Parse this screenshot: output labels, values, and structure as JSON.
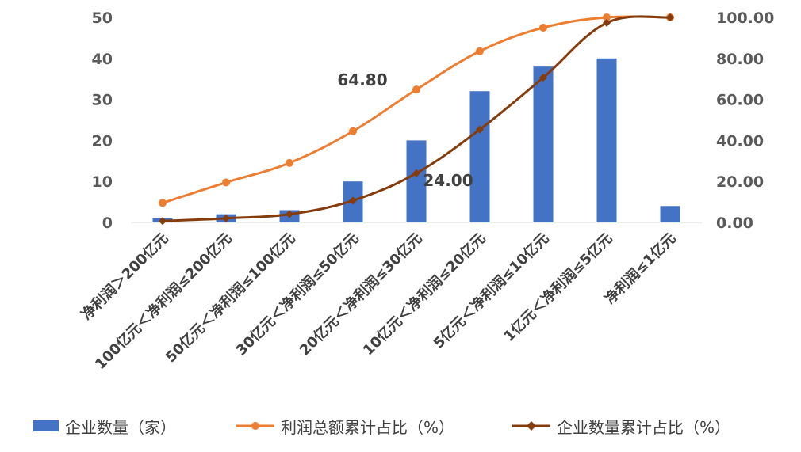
{
  "chart_data": {
    "type": "bar+line",
    "categories": [
      "净利润＞200亿元",
      "100亿元＜净利润≤200亿元",
      "50亿元＜净利润≤100亿元",
      "30亿元＜净利润≤50亿元",
      "20亿元＜净利润≤30亿元",
      "10亿元＜净利润≤20亿元",
      "5亿元＜净利润≤10亿元",
      "1亿元＜净利润≤5亿元",
      "净利润≤1亿元"
    ],
    "series": [
      {
        "name": "企业数量（家）",
        "type": "bar",
        "axis": "left",
        "color": "#4472C4",
        "values": [
          1,
          2,
          3,
          10,
          20,
          32,
          38,
          40,
          4
        ]
      },
      {
        "name": "利润总额累计占比（%）",
        "type": "line",
        "axis": "right",
        "color": "#ED7D31",
        "marker": "circle",
        "values": [
          9.5,
          19.5,
          29.0,
          44.5,
          64.8,
          83.5,
          95.0,
          100.0,
          100.0
        ]
      },
      {
        "name": "企业数量累计占比（%）",
        "type": "line",
        "axis": "right",
        "color": "#843C0C",
        "marker": "diamond",
        "values": [
          0.67,
          2.0,
          4.0,
          10.67,
          24.0,
          45.33,
          70.67,
          97.33,
          100.0
        ]
      }
    ],
    "y_left": {
      "ylim": [
        0,
        50
      ],
      "ticks": [
        "0",
        "10",
        "20",
        "30",
        "40",
        "50"
      ]
    },
    "y_right": {
      "ylim": [
        0,
        100
      ],
      "ticks": [
        "0.00",
        "20.00",
        "40.00",
        "60.00",
        "80.00",
        "100.00"
      ]
    },
    "annotations": [
      "64.80",
      "24.00"
    ],
    "legend_position": "bottom",
    "grid": false
  }
}
